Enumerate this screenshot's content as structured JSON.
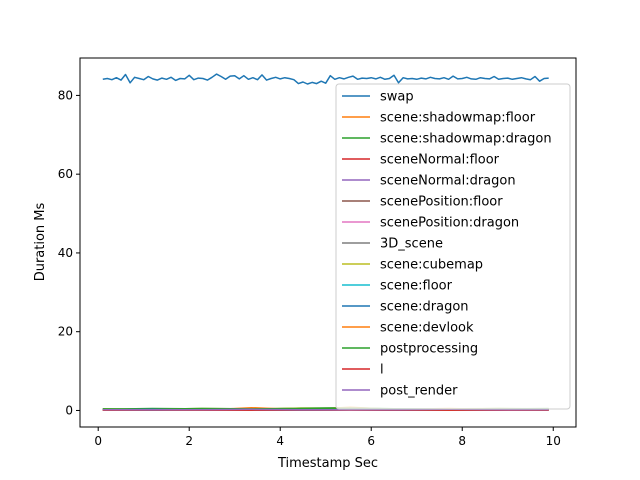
{
  "chart_data": {
    "type": "line",
    "title": "",
    "xlabel": "Timestamp Sec",
    "ylabel": "Duration Ms",
    "xlim": [
      -0.4,
      10.5
    ],
    "ylim": [
      -4.2,
      89.5
    ],
    "xticks": [
      0,
      2,
      4,
      6,
      8,
      10
    ],
    "yticks": [
      0,
      20,
      40,
      60,
      80
    ],
    "grid": false,
    "legend_position": "top-right",
    "series": [
      {
        "name": "swap",
        "color": "#1f77b4",
        "x": [
          0.1,
          0.2,
          0.3,
          0.4,
          0.5,
          0.6,
          0.7,
          0.8,
          0.9,
          1.0,
          1.1,
          1.2,
          1.3,
          1.4,
          1.5,
          1.6,
          1.7,
          1.8,
          1.9,
          2.0,
          2.1,
          2.2,
          2.3,
          2.4,
          2.5,
          2.6,
          2.7,
          2.8,
          2.9,
          3.0,
          3.1,
          3.2,
          3.3,
          3.4,
          3.5,
          3.6,
          3.7,
          3.8,
          3.9,
          4.0,
          4.1,
          4.2,
          4.3,
          4.4,
          4.5,
          4.6,
          4.7,
          4.8,
          4.9,
          5.0,
          5.1,
          5.2,
          5.3,
          5.4,
          5.5,
          5.6,
          5.7,
          5.8,
          5.9,
          6.0,
          6.1,
          6.2,
          6.3,
          6.4,
          6.5,
          6.6,
          6.7,
          6.8,
          6.9,
          7.0,
          7.1,
          7.2,
          7.3,
          7.4,
          7.5,
          7.6,
          7.7,
          7.8,
          7.9,
          8.0,
          8.1,
          8.2,
          8.3,
          8.4,
          8.5,
          8.6,
          8.7,
          8.8,
          8.9,
          9.0,
          9.1,
          9.2,
          9.3,
          9.4,
          9.5,
          9.6,
          9.7,
          9.8,
          9.9
        ],
        "values": [
          84.1,
          84.3,
          84.0,
          84.5,
          83.9,
          85.3,
          83.2,
          84.6,
          84.3,
          84.0,
          84.8,
          84.2,
          83.9,
          84.4,
          84.1,
          84.6,
          83.8,
          84.3,
          84.2,
          85.1,
          84.0,
          84.4,
          84.3,
          83.9,
          84.6,
          85.4,
          84.8,
          84.1,
          84.9,
          85.0,
          84.2,
          85.0,
          84.1,
          84.5,
          84.0,
          85.2,
          83.9,
          84.3,
          84.6,
          84.2,
          84.5,
          84.3,
          84.0,
          83.0,
          83.4,
          82.9,
          83.3,
          83.0,
          83.6,
          83.1,
          85.0,
          84.1,
          84.5,
          84.2,
          84.6,
          84.9,
          84.1,
          84.4,
          84.3,
          84.5,
          84.2,
          84.6,
          84.1,
          84.3,
          85.1,
          83.2,
          84.5,
          84.2,
          84.3,
          84.1,
          84.4,
          84.2,
          84.6,
          84.3,
          84.2,
          84.5,
          84.1,
          84.9,
          84.2,
          84.3,
          84.6,
          84.2,
          84.1,
          84.5,
          84.3,
          84.2,
          84.8,
          84.1,
          84.3,
          84.4,
          84.1,
          84.3,
          84.5,
          84.2,
          84.0,
          84.8,
          83.6,
          84.3,
          84.4
        ]
      },
      {
        "name": "scene:shadowmap:floor",
        "color": "#ff7f0e",
        "values": [
          0.2,
          0.3,
          0.2,
          0.4,
          0.3,
          0.2,
          0.3,
          0.5,
          0.2,
          0.3
        ]
      },
      {
        "name": "scene:shadowmap:dragon",
        "color": "#2ca02c",
        "values": [
          0.3,
          0.5,
          0.4,
          0.3,
          0.6,
          0.7,
          0.4,
          0.3,
          0.5,
          0.4
        ]
      },
      {
        "name": "sceneNormal:floor",
        "color": "#d62728",
        "values": [
          0.1,
          0.2,
          0.1,
          0.2,
          0.1,
          0.2,
          0.1,
          0.2,
          0.1,
          0.2
        ]
      },
      {
        "name": "sceneNormal:dragon",
        "color": "#9467bd",
        "values": [
          0.2,
          0.2,
          0.3,
          0.2,
          0.3,
          0.2,
          0.2,
          0.3,
          0.2,
          0.2
        ]
      },
      {
        "name": "scenePosition:floor",
        "color": "#8c564b",
        "values": [
          0.1,
          0.1,
          0.2,
          0.1,
          0.1,
          0.2,
          0.1,
          0.1,
          0.2,
          0.1
        ]
      },
      {
        "name": "scenePosition:dragon",
        "color": "#e377c2",
        "values": [
          0.2,
          0.3,
          0.2,
          0.2,
          0.3,
          0.2,
          0.3,
          0.2,
          0.2,
          0.3
        ]
      },
      {
        "name": "3D_scene",
        "color": "#7f7f7f",
        "values": [
          0.3,
          0.2,
          0.3,
          0.3,
          0.2,
          0.3,
          0.2,
          0.3,
          0.3,
          0.2
        ]
      },
      {
        "name": "scene:cubemap",
        "color": "#bcbd22",
        "values": [
          0.4,
          0.3,
          0.5,
          0.4,
          0.6,
          0.5,
          0.4,
          0.4,
          0.5,
          0.4
        ]
      },
      {
        "name": "scene:floor",
        "color": "#17becf",
        "values": [
          0.2,
          0.1,
          0.2,
          0.2,
          0.1,
          0.2,
          0.2,
          0.1,
          0.2,
          0.2
        ]
      },
      {
        "name": "scene:dragon",
        "color": "#1f77b4",
        "values": [
          0.3,
          0.4,
          0.3,
          0.3,
          0.4,
          0.3,
          0.4,
          0.3,
          0.3,
          0.4
        ]
      },
      {
        "name": "scene:devlook",
        "color": "#ff7f0e",
        "values": [
          0.1,
          0.2,
          0.1,
          0.7,
          0.2,
          0.8,
          0.2,
          0.1,
          0.2,
          0.1
        ]
      },
      {
        "name": "postprocessing",
        "color": "#2ca02c",
        "values": [
          0.4,
          0.3,
          0.5,
          0.4,
          0.5,
          0.6,
          0.4,
          0.3,
          0.4,
          0.5
        ]
      },
      {
        "name": "l",
        "color": "#d62728",
        "values": [
          0.1,
          0.1,
          0.1,
          0.1,
          0.1,
          0.1,
          0.1,
          0.1,
          0.1,
          0.1
        ]
      },
      {
        "name": "post_render",
        "color": "#9467bd",
        "values": [
          0.2,
          0.2,
          0.2,
          0.3,
          0.2,
          0.2,
          0.2,
          0.3,
          0.2,
          0.2
        ]
      }
    ]
  }
}
